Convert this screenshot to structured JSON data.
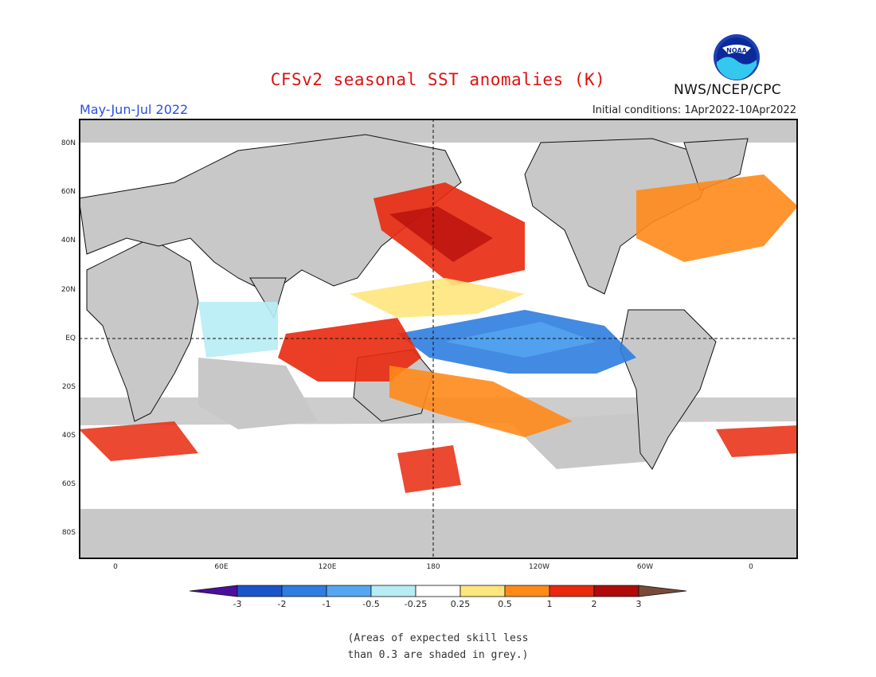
{
  "header": {
    "title": "CFSv2 seasonal SST anomalies (K)",
    "season": "May-Jun-Jul 2022",
    "initial_conditions": "Initial conditions: 1Apr2022-10Apr2022",
    "agency": "NWS/NCEP/CPC",
    "logo_text": "NOAA"
  },
  "map": {
    "land_color": "#c8c8c8",
    "lat_labels": [
      "80N",
      "60N",
      "40N",
      "20N",
      "EQ",
      "20S",
      "40S",
      "60S",
      "80S"
    ],
    "lon_labels": [
      "0",
      "60E",
      "120E",
      "180",
      "120W",
      "60W",
      "0"
    ]
  },
  "colorbar": {
    "labels": [
      "-3",
      "-2",
      "-1",
      "-0.5",
      "-0.25",
      "0.25",
      "0.5",
      "1",
      "2",
      "3"
    ],
    "colors": [
      "#4b0e9e",
      "#1a55c8",
      "#2f7de0",
      "#55a6f0",
      "#b7ecf5",
      "#ffffff",
      "#ffe57d",
      "#ff8a1a",
      "#e8290e",
      "#b00a0a",
      "#7a4a38"
    ]
  },
  "note": {
    "line1": "(Areas of expected skill less",
    "line2": "than 0.3 are shaded in grey.)"
  }
}
